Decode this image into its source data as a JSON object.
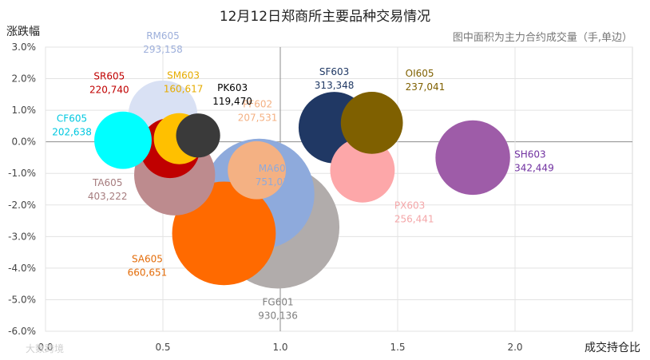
{
  "chart_data": {
    "type": "scatter",
    "title": "12月12日郑商所主要品种交易情况",
    "subtitle": "图中面积为主力合约成交量（手,单边）",
    "xlabel": "成交持仓比",
    "ylabel": "涨跌幅",
    "xlim": [
      0.0,
      2.5
    ],
    "ylim": [
      -6.0,
      3.0
    ],
    "x_ticks": [
      "0.0",
      "0.5",
      "1.0",
      "1.5",
      "2.0"
    ],
    "y_ticks": [
      "3.0%",
      "2.0%",
      "1.0%",
      "0.0%",
      "-1.0%",
      "-2.0%",
      "-3.0%",
      "-4.0%",
      "-5.0%",
      "-6.0%"
    ],
    "grid": true,
    "series": [
      {
        "name": "FG601",
        "x": 0.99,
        "y": -2.7,
        "volume": 930136,
        "volume_label": "930,136",
        "color": "#b1acab"
      },
      {
        "name": "MA605",
        "x": 0.91,
        "y": -1.65,
        "volume": 751017,
        "volume_label": "751,017",
        "color": "#8eaadc"
      },
      {
        "name": "SA605",
        "x": 0.76,
        "y": -2.9,
        "volume": 660651,
        "volume_label": "660,651",
        "color": "#ff6a00"
      },
      {
        "name": "TA605",
        "x": 0.55,
        "y": -1.05,
        "volume": 403222,
        "volume_label": "403,222",
        "color": "#bd8b8e"
      },
      {
        "name": "SH603",
        "x": 1.82,
        "y": -0.5,
        "volume": 342449,
        "volume_label": "342,449",
        "color": "#9e5ca8"
      },
      {
        "name": "SF603",
        "x": 1.23,
        "y": 0.45,
        "volume": 313348,
        "volume_label": "313,348",
        "color": "#203864"
      },
      {
        "name": "RM605",
        "x": 0.5,
        "y": 0.85,
        "volume": 293158,
        "volume_label": "293,158",
        "color": "#d9e1f4"
      },
      {
        "name": "PX603",
        "x": 1.35,
        "y": -0.9,
        "volume": 256441,
        "volume_label": "256,441",
        "color": "#fda7a9"
      },
      {
        "name": "OI605",
        "x": 1.39,
        "y": 0.6,
        "volume": 237041,
        "volume_label": "237,041",
        "color": "#7f6000"
      },
      {
        "name": "SR605",
        "x": 0.53,
        "y": -0.2,
        "volume": 220740,
        "volume_label": "220,740",
        "color": "#c00000"
      },
      {
        "name": "PF602",
        "x": 0.9,
        "y": -0.9,
        "volume": 207531,
        "volume_label": "207,531",
        "color": "#f4b183"
      },
      {
        "name": "CF605",
        "x": 0.33,
        "y": 0.05,
        "volume": 202638,
        "volume_label": "202,638",
        "color": "#00ffff"
      },
      {
        "name": "SM603",
        "x": 0.57,
        "y": 0.1,
        "volume": 160617,
        "volume_label": "160,617",
        "color": "#ffc000"
      },
      {
        "name": "PK603",
        "x": 0.65,
        "y": 0.2,
        "volume": 119470,
        "volume_label": "119,470",
        "color": "#3a3a3a"
      }
    ],
    "label_colors": {
      "FG601": "#7f7f7f",
      "MA605": "#8eaadc",
      "SA605": "#e36c09",
      "TA605": "#a67c7e",
      "SH603": "#7030a0",
      "SF603": "#1f3864",
      "RM605": "#9dafdb",
      "PX603": "#f4a7a9",
      "OI605": "#7f6000",
      "SR605": "#c00000",
      "PF602": "#f4b183",
      "CF605": "#00c8e0",
      "SM603": "#e6ac00",
      "PK603": "#000000"
    }
  },
  "watermark": "大数跨境"
}
